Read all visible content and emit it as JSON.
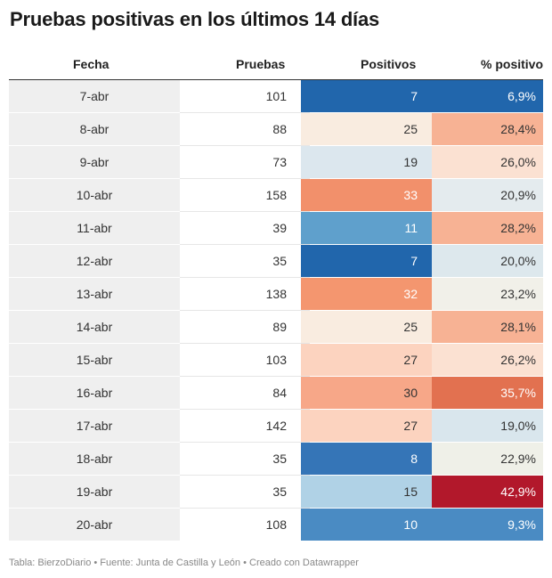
{
  "title": "Pruebas positivas en los últimos 14 días",
  "headers": {
    "fecha": "Fecha",
    "pruebas": "Pruebas",
    "positivos": "Positivos",
    "pct": "% positivo"
  },
  "footer": "Tabla: BierzoDiario • Fuente: Junta de Castilla y León • Creado con Datawrapper",
  "chart_data": {
    "type": "table",
    "columns": [
      "Fecha",
      "Pruebas",
      "Positivos",
      "% positivo"
    ],
    "rows": [
      {
        "fecha": "7-abr",
        "pruebas": "101",
        "positivos": "7",
        "pct": "6,9%",
        "pos_color": "#2166ac",
        "pct_color": "#2166ac"
      },
      {
        "fecha": "8-abr",
        "pruebas": "88",
        "positivos": "25",
        "pct": "28,4%",
        "pos_color": "#f9ece0",
        "pct_color": "#f7b294"
      },
      {
        "fecha": "9-abr",
        "pruebas": "73",
        "positivos": "19",
        "pct": "26,0%",
        "pos_color": "#dce7ee",
        "pct_color": "#fbe1d2"
      },
      {
        "fecha": "10-abr",
        "pruebas": "158",
        "positivos": "33",
        "pct": "20,9%",
        "pos_color": "#f2906b",
        "pct_color": "#e4ebee"
      },
      {
        "fecha": "11-abr",
        "pruebas": "39",
        "positivos": "11",
        "pct": "28,2%",
        "pos_color": "#5fa0cc",
        "pct_color": "#f7b294"
      },
      {
        "fecha": "12-abr",
        "pruebas": "35",
        "positivos": "7",
        "pct": "20,0%",
        "pos_color": "#2166ac",
        "pct_color": "#dde8ed"
      },
      {
        "fecha": "13-abr",
        "pruebas": "138",
        "positivos": "32",
        "pct": "23,2%",
        "pos_color": "#f4966f",
        "pct_color": "#f1f0e9"
      },
      {
        "fecha": "14-abr",
        "pruebas": "89",
        "positivos": "25",
        "pct": "28,1%",
        "pos_color": "#f9ece0",
        "pct_color": "#f7b294"
      },
      {
        "fecha": "15-abr",
        "pruebas": "103",
        "positivos": "27",
        "pct": "26,2%",
        "pos_color": "#fcd3bf",
        "pct_color": "#fbe1d2"
      },
      {
        "fecha": "16-abr",
        "pruebas": "84",
        "positivos": "30",
        "pct": "35,7%",
        "pos_color": "#f7a788",
        "pct_color": "#e27150"
      },
      {
        "fecha": "17-abr",
        "pruebas": "142",
        "positivos": "27",
        "pct": "19,0%",
        "pos_color": "#fcd3bf",
        "pct_color": "#d9e6ed"
      },
      {
        "fecha": "18-abr",
        "pruebas": "35",
        "positivos": "8",
        "pct": "22,9%",
        "pos_color": "#3575b7",
        "pct_color": "#eff0e8"
      },
      {
        "fecha": "19-abr",
        "pruebas": "35",
        "positivos": "15",
        "pct": "42,9%",
        "pos_color": "#b0d2e6",
        "pct_color": "#b2182b"
      },
      {
        "fecha": "20-abr",
        "pruebas": "108",
        "positivos": "10",
        "pct": "9,3%",
        "pos_color": "#4a8bc3",
        "pct_color": "#4a8bc3"
      }
    ],
    "light_text_colors": [
      "#2166ac",
      "#3575b7",
      "#4a8bc3",
      "#5fa0cc",
      "#f2906b",
      "#f4966f",
      "#e27150",
      "#b2182b"
    ]
  }
}
